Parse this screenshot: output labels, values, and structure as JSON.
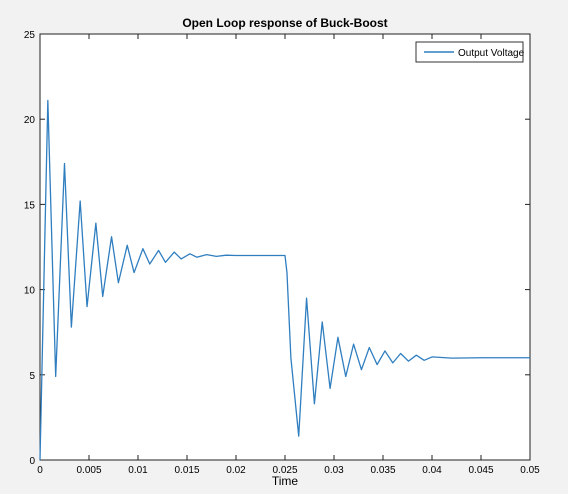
{
  "chart_data": {
    "type": "line",
    "title": "Open Loop response of Buck-Boost",
    "xlabel": "Time",
    "ylabel": "",
    "xlim": [
      0,
      0.05
    ],
    "ylim": [
      0,
      25
    ],
    "xticks": [
      0,
      0.005,
      0.01,
      0.015,
      0.02,
      0.025,
      0.03,
      0.035,
      0.04,
      0.045,
      0.05
    ],
    "xtick_labels": [
      "0",
      "0.005",
      "0.01",
      "0.015",
      "0.02",
      "0.025",
      "0.03",
      "0.035",
      "0.04",
      "0.045",
      "0.05"
    ],
    "yticks": [
      0,
      5,
      10,
      15,
      20,
      25
    ],
    "ytick_labels": [
      "0",
      "5",
      "10",
      "15",
      "20",
      "25"
    ],
    "grid": false,
    "legend_position": "top-right",
    "series": [
      {
        "name": "Output Voltage",
        "color": "#2f7ec0",
        "x": [
          0,
          0.0008,
          0.0016,
          0.0025,
          0.0032,
          0.0041,
          0.0048,
          0.0057,
          0.0064,
          0.0073,
          0.008,
          0.0089,
          0.0096,
          0.0105,
          0.0112,
          0.0121,
          0.0128,
          0.0137,
          0.0144,
          0.0153,
          0.016,
          0.017,
          0.018,
          0.019,
          0.02,
          0.022,
          0.024,
          0.025,
          0.0252,
          0.0256,
          0.0264,
          0.0272,
          0.028,
          0.0288,
          0.0296,
          0.0304,
          0.0312,
          0.032,
          0.0328,
          0.0336,
          0.0344,
          0.0352,
          0.036,
          0.0368,
          0.0376,
          0.0384,
          0.0392,
          0.04,
          0.042,
          0.045,
          0.05
        ],
        "y": [
          0,
          21.1,
          4.9,
          17.4,
          7.8,
          15.2,
          9.0,
          13.9,
          9.6,
          13.1,
          10.4,
          12.6,
          11.0,
          12.4,
          11.5,
          12.3,
          11.6,
          12.2,
          11.8,
          12.1,
          11.9,
          12.05,
          11.95,
          12.02,
          12.0,
          12.0,
          12.0,
          12.0,
          11.0,
          6.0,
          1.4,
          9.5,
          3.3,
          8.1,
          4.2,
          7.2,
          4.9,
          6.8,
          5.3,
          6.6,
          5.6,
          6.4,
          5.7,
          6.25,
          5.8,
          6.15,
          5.85,
          6.05,
          5.98,
          6.0,
          6.0
        ]
      }
    ]
  }
}
